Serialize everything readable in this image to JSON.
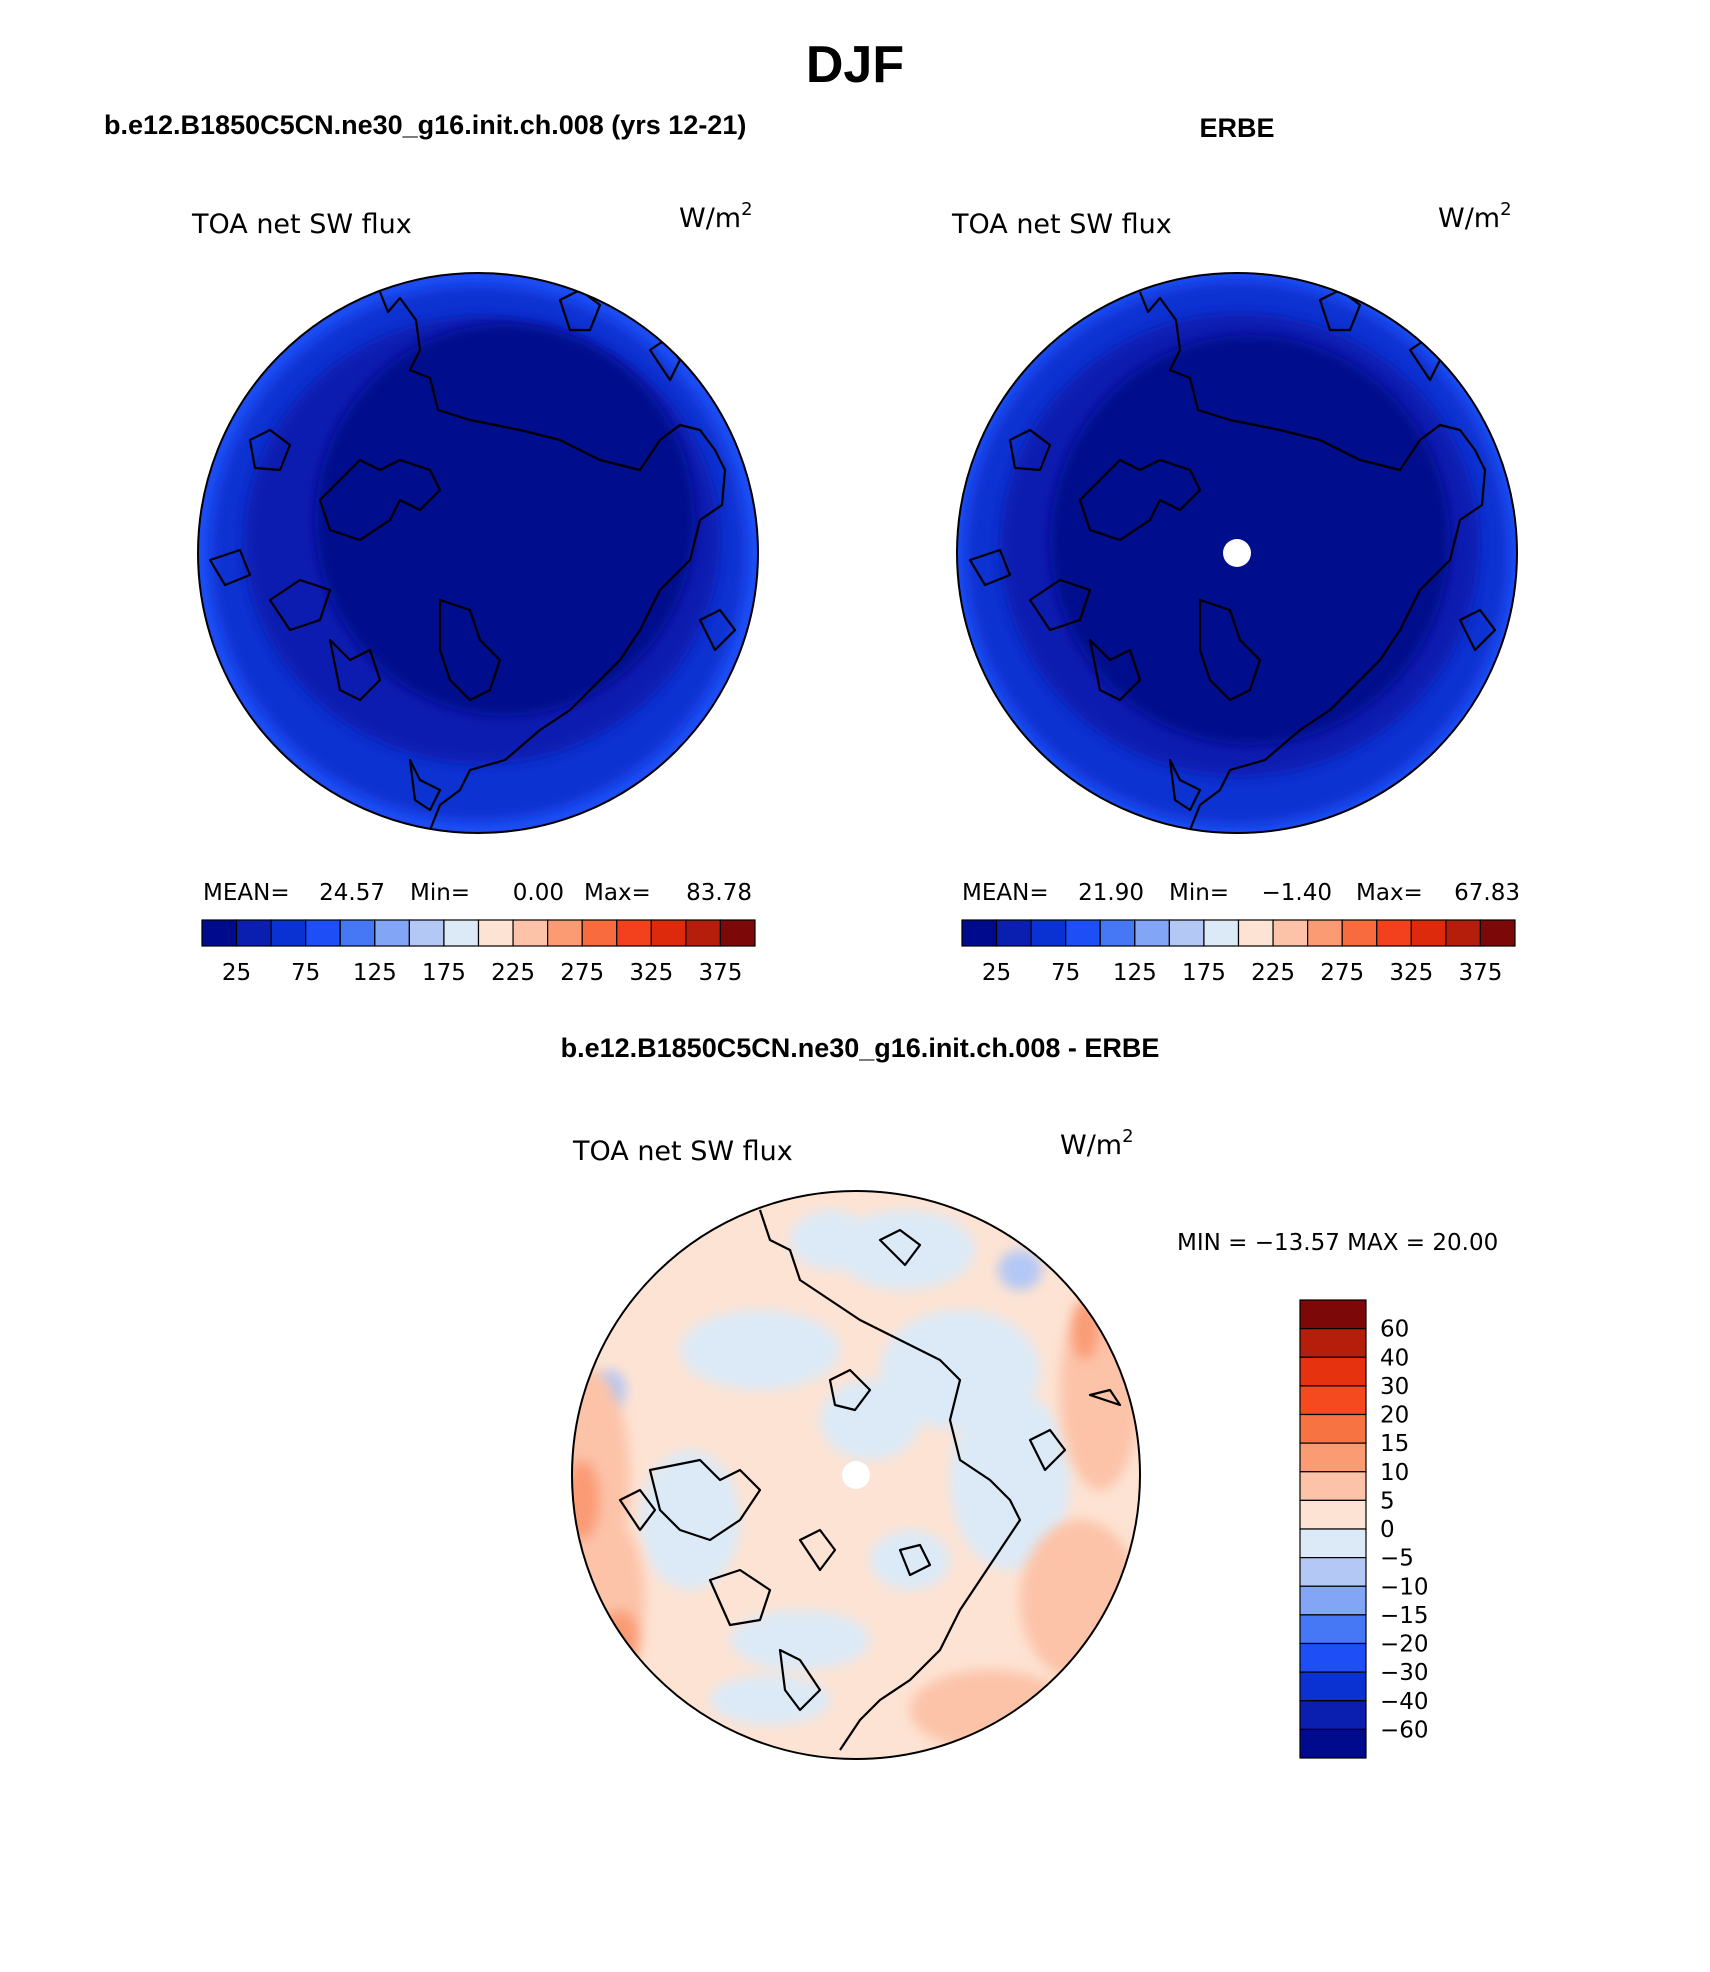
{
  "figure": {
    "title": "DJF",
    "subplots": [
      {
        "case_title": "b.e12.B1850C5CN.ne30_g16.init.ch.008 (yrs 12-21)",
        "variable_label": "TOA net SW flux",
        "units_base": "W/m",
        "units_exp": "2",
        "stats": {
          "mean_label": "MEAN=",
          "mean_value": "24.57",
          "min_label": "Min=",
          "min_value": "0.00",
          "max_label": "Max=",
          "max_value": "83.78"
        },
        "has_pole_hole": false
      },
      {
        "case_title": "ERBE",
        "variable_label": "TOA net SW flux",
        "units_base": "W/m",
        "units_exp": "2",
        "stats": {
          "mean_label": "MEAN=",
          "mean_value": "21.90",
          "min_label": "Min=",
          "min_value": "−1.40",
          "max_label": "Max=",
          "max_value": "67.83"
        },
        "has_pole_hole": true
      }
    ],
    "difference": {
      "case_title": "b.e12.B1850C5CN.ne30_g16.init.ch.008 - ERBE",
      "variable_label": "TOA net SW flux",
      "units_base": "W/m",
      "units_exp": "2",
      "minmax_text": "MIN = −13.57 MAX =  20.00"
    }
  },
  "colorbars": {
    "abs": {
      "colors": [
        "#000a8c",
        "#0a1fb0",
        "#0a32d2",
        "#1e4ef5",
        "#4678f5",
        "#82a5f5",
        "#b4c8f5",
        "#dceaf7",
        "#fde3d3",
        "#fcc3a8",
        "#fa9b74",
        "#f76b3e",
        "#f2411c",
        "#de2a0c",
        "#b41e0a",
        "#7d0808"
      ],
      "tick_labels": [
        "25",
        "75",
        "125",
        "175",
        "225",
        "275",
        "325",
        "375"
      ]
    },
    "diff": {
      "colors_top_to_bottom": [
        "#7d0808",
        "#b41e0a",
        "#e6320f",
        "#f54a1f",
        "#f77342",
        "#fa9b74",
        "#fcc3a8",
        "#fde3d3",
        "#dceaf7",
        "#b4c8f5",
        "#82a5f5",
        "#4678f5",
        "#1e4ef5",
        "#0a32d2",
        "#0a1fb0",
        "#000a8c"
      ],
      "tick_labels": [
        "60",
        "40",
        "30",
        "20",
        "15",
        "10",
        "5",
        "0",
        "−5",
        "−10",
        "−15",
        "−20",
        "−30",
        "−40",
        "−60"
      ]
    }
  }
}
